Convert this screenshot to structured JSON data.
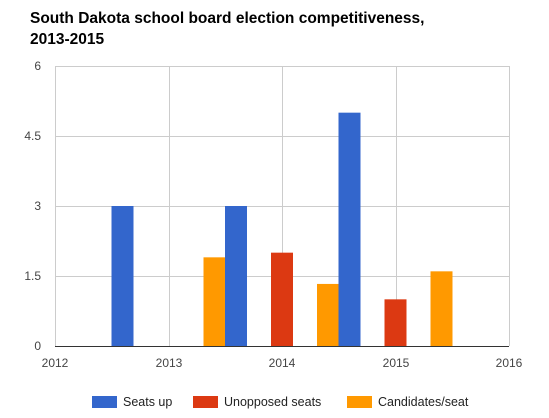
{
  "chart_data": {
    "type": "bar",
    "title_lines": [
      "South Dakota school board election competitiveness,",
      "2013-2015"
    ],
    "xlabel": "",
    "ylabel": "",
    "x_ticks": [
      "2012",
      "2013",
      "2014",
      "2015",
      "2016"
    ],
    "x_tick_values": [
      2012,
      2013,
      2014,
      2015,
      2016
    ],
    "y_ticks": [
      "0",
      "1.5",
      "3",
      "4.5",
      "6"
    ],
    "y_tick_values": [
      0,
      1.5,
      3,
      4.5,
      6
    ],
    "xlim": [
      2012,
      2016
    ],
    "ylim": [
      0,
      6
    ],
    "grid": true,
    "legend_position": "bottom",
    "categories": [
      2013,
      2014,
      2015
    ],
    "series": [
      {
        "name": "Seats up",
        "color": "#3366cc",
        "values": [
          3,
          3,
          5
        ]
      },
      {
        "name": "Unopposed seats",
        "color": "#dc3912",
        "values": [
          0,
          2,
          1
        ]
      },
      {
        "name": "Candidates/seat",
        "color": "#ff9900",
        "values": [
          1.9,
          1.33,
          1.6
        ]
      }
    ]
  }
}
